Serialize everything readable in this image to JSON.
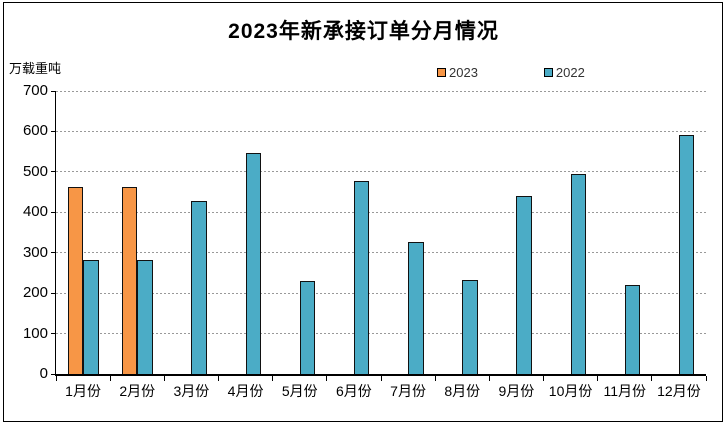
{
  "chart": {
    "title": "2023年新承接订单分月情况",
    "unit_label": "万载重吨"
  },
  "chart_data": {
    "type": "bar",
    "title": "2023年新承接订单分月情况",
    "xlabel": "",
    "ylabel": "万载重吨",
    "categories": [
      "1月份",
      "2月份",
      "3月份",
      "4月份",
      "5月份",
      "6月份",
      "7月份",
      "8月份",
      "9月份",
      "10月份",
      "11月份",
      "12月份"
    ],
    "series": [
      {
        "name": "2023",
        "color": "#F79646",
        "values": [
          462,
          463,
          null,
          null,
          null,
          null,
          null,
          null,
          null,
          null,
          null,
          null
        ]
      },
      {
        "name": "2022",
        "color": "#4BACC6",
        "values": [
          282,
          283,
          428,
          546,
          230,
          477,
          327,
          232,
          441,
          494,
          220,
          592
        ]
      }
    ],
    "ylim": [
      0,
      700
    ],
    "yticks": [
      0,
      100,
      200,
      300,
      400,
      500,
      600,
      700
    ],
    "grid": "horizontal-dashed",
    "legend_position": "top-center",
    "bar_border_color": "#111111",
    "gridline_color": "#999999"
  }
}
